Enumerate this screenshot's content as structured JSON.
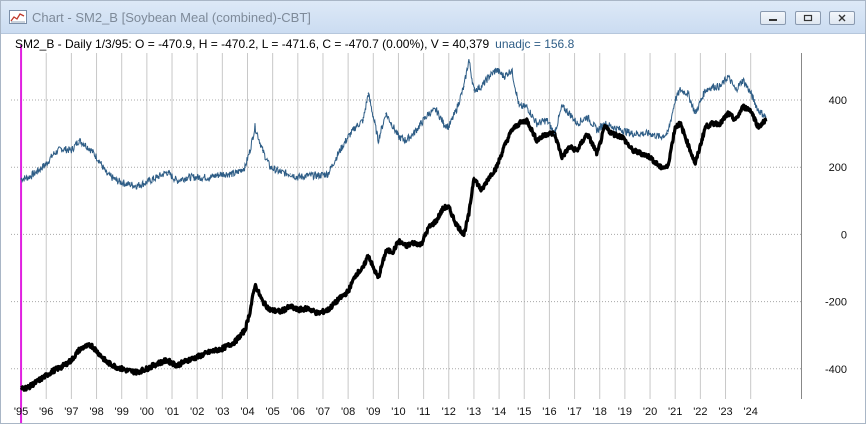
{
  "window": {
    "title": "Chart - SM2_B [Soybean Meal (combined)-CBT]",
    "controls": [
      "minimize",
      "restore",
      "close"
    ]
  },
  "info": {
    "text": "SM2_B - Daily 1/3/95:  O = -470.9,  H = -470.2,  L = -471.6,  C = -470.7 (0.00%),  V = 40,379",
    "unadj_text": "unadjc = 156.8"
  },
  "colors": {
    "adjusted_series": "#000000",
    "unadjusted_series": "#2e5d86",
    "cursor": "#e020e0",
    "gridline": "#c8c8c8"
  },
  "chart_data": {
    "type": "line",
    "xlim": [
      1994.6,
      2026.0
    ],
    "ylim": [
      -490,
      540
    ],
    "y_ticks": [
      -400,
      -200,
      0,
      200,
      400
    ],
    "x_tick_labels": [
      "'95",
      "'96",
      "'97",
      "'98",
      "'99",
      "'00",
      "'01",
      "'02",
      "'03",
      "'04",
      "'05",
      "'06",
      "'07",
      "'08",
      "'09",
      "'10",
      "'11",
      "'12",
      "'13",
      "'14",
      "'15",
      "'16",
      "'17",
      "'18",
      "'19",
      "'20",
      "'21",
      "'22",
      "'23",
      "'24"
    ],
    "x_tick_years": [
      1995,
      1996,
      1997,
      1998,
      1999,
      2000,
      2001,
      2002,
      2003,
      2004,
      2005,
      2006,
      2007,
      2008,
      2009,
      2010,
      2011,
      2012,
      2013,
      2014,
      2015,
      2016,
      2017,
      2018,
      2019,
      2020,
      2021,
      2022,
      2023,
      2024
    ],
    "grid": "vertical lines at each year, horizontal dotted lines at y ticks",
    "cursor_x": 1995.0,
    "series": [
      {
        "name": "SM2_B",
        "style": "thick black bars",
        "x": [
          1995.0,
          1995.3,
          1995.6,
          1996.0,
          1996.3,
          1996.6,
          1997.0,
          1997.3,
          1997.5,
          1997.8,
          1998.1,
          1998.4,
          1998.8,
          1999.2,
          1999.6,
          2000.0,
          2000.4,
          2000.8,
          2001.2,
          2001.6,
          2002.0,
          2002.5,
          2003.0,
          2003.5,
          2003.9,
          2004.1,
          2004.3,
          2004.6,
          2004.9,
          2005.3,
          2005.7,
          2006.0,
          2006.4,
          2006.8,
          2007.2,
          2007.6,
          2008.0,
          2008.3,
          2008.6,
          2008.8,
          2009.0,
          2009.2,
          2009.5,
          2009.8,
          2010.0,
          2010.3,
          2010.6,
          2010.9,
          2011.2,
          2011.5,
          2011.8,
          2012.0,
          2012.3,
          2012.6,
          2012.8,
          2013.0,
          2013.3,
          2013.6,
          2013.9,
          2014.2,
          2014.5,
          2014.8,
          2015.1,
          2015.5,
          2015.9,
          2016.2,
          2016.5,
          2016.8,
          2017.1,
          2017.5,
          2017.9,
          2018.2,
          2018.5,
          2018.9,
          2019.3,
          2019.7,
          2020.0,
          2020.4,
          2020.7,
          2021.0,
          2021.2,
          2021.5,
          2021.8,
          2022.2,
          2022.5,
          2022.8,
          2023.1,
          2023.4,
          2023.7,
          2024.0,
          2024.3,
          2024.6
        ],
        "values": [
          -460,
          -455,
          -440,
          -420,
          -405,
          -395,
          -375,
          -345,
          -335,
          -330,
          -355,
          -380,
          -395,
          -405,
          -410,
          -400,
          -385,
          -375,
          -390,
          -375,
          -365,
          -350,
          -340,
          -320,
          -285,
          -230,
          -150,
          -200,
          -225,
          -230,
          -215,
          -225,
          -220,
          -235,
          -225,
          -195,
          -170,
          -120,
          -100,
          -60,
          -100,
          -130,
          -50,
          -50,
          -20,
          -35,
          -25,
          -30,
          20,
          40,
          80,
          80,
          30,
          0,
          60,
          170,
          130,
          170,
          200,
          260,
          310,
          330,
          340,
          280,
          300,
          300,
          230,
          260,
          250,
          300,
          240,
          320,
          300,
          290,
          250,
          240,
          230,
          200,
          200,
          320,
          330,
          270,
          210,
          320,
          330,
          330,
          360,
          340,
          380,
          370,
          320,
          340
        ]
      },
      {
        "name": "unadjc",
        "style": "thin blue line",
        "x": [
          1995.0,
          1995.3,
          1995.6,
          1996.0,
          1996.3,
          1996.6,
          1997.0,
          1997.3,
          1997.5,
          1997.8,
          1998.1,
          1998.4,
          1998.8,
          1999.2,
          1999.6,
          2000.0,
          2000.4,
          2000.8,
          2001.2,
          2001.6,
          2002.0,
          2002.5,
          2003.0,
          2003.5,
          2003.9,
          2004.1,
          2004.3,
          2004.6,
          2004.9,
          2005.3,
          2005.7,
          2006.0,
          2006.4,
          2006.8,
          2007.2,
          2007.6,
          2008.0,
          2008.3,
          2008.6,
          2008.8,
          2009.0,
          2009.2,
          2009.5,
          2009.8,
          2010.0,
          2010.3,
          2010.6,
          2010.9,
          2011.2,
          2011.5,
          2011.8,
          2012.0,
          2012.3,
          2012.6,
          2012.8,
          2013.0,
          2013.3,
          2013.6,
          2013.9,
          2014.2,
          2014.5,
          2014.8,
          2015.1,
          2015.5,
          2015.9,
          2016.2,
          2016.5,
          2016.8,
          2017.1,
          2017.5,
          2017.9,
          2018.2,
          2018.5,
          2018.9,
          2019.3,
          2019.7,
          2020.0,
          2020.4,
          2020.7,
          2021.0,
          2021.2,
          2021.5,
          2021.8,
          2022.2,
          2022.5,
          2022.8,
          2023.1,
          2023.4,
          2023.7,
          2024.0,
          2024.3,
          2024.6
        ],
        "values": [
          165,
          170,
          185,
          210,
          240,
          255,
          250,
          280,
          270,
          250,
          220,
          180,
          160,
          150,
          145,
          155,
          170,
          185,
          160,
          170,
          170,
          170,
          180,
          180,
          200,
          250,
          320,
          250,
          200,
          185,
          180,
          170,
          175,
          175,
          180,
          240,
          290,
          320,
          340,
          420,
          350,
          280,
          360,
          320,
          290,
          280,
          300,
          330,
          360,
          370,
          330,
          320,
          370,
          440,
          520,
          430,
          440,
          470,
          490,
          470,
          490,
          380,
          380,
          330,
          340,
          300,
          380,
          360,
          330,
          350,
          310,
          330,
          320,
          310,
          300,
          300,
          300,
          290,
          300,
          400,
          430,
          420,
          360,
          430,
          440,
          440,
          470,
          430,
          460,
          420,
          370,
          350
        ]
      }
    ]
  }
}
